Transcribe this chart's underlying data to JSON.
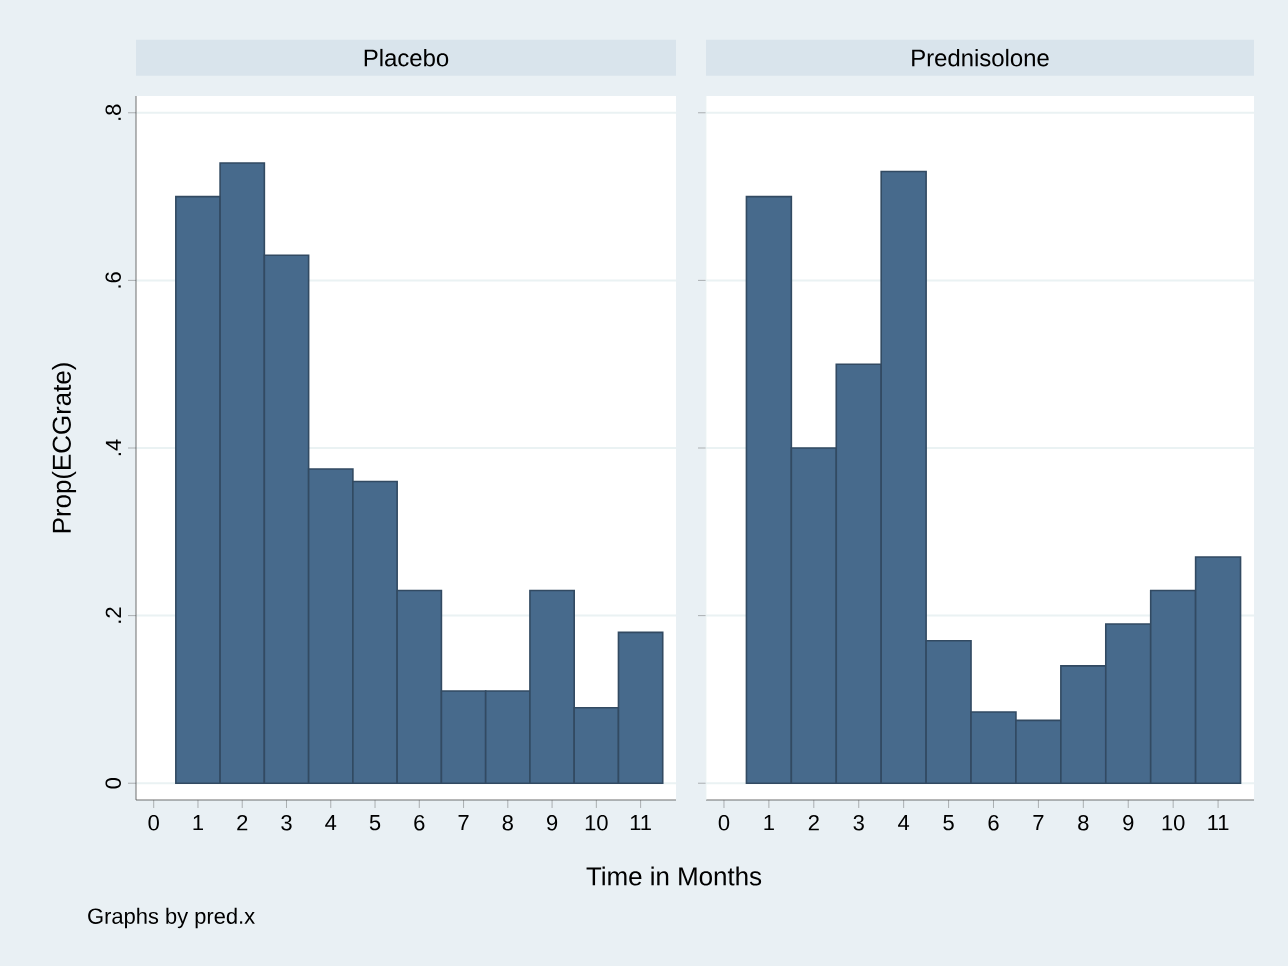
{
  "chart_data": [
    {
      "type": "histogram",
      "title": "Placebo",
      "ylabel": "Prop(ECGrate)",
      "xlabel": "Time in Months",
      "annotations": [
        "Graphs by pred.x"
      ],
      "bins": [
        0.5,
        1.5,
        2.5,
        3.5,
        4.5,
        5.5,
        6.5,
        7.5,
        8.5,
        9.5,
        10.5,
        11.5
      ],
      "values": [
        0.7,
        0.74,
        0.63,
        0.375,
        0.36,
        0.23,
        0.11,
        0.11,
        0.23,
        0.09,
        0.18
      ],
      "color": "#476a8c",
      "xlim": [
        -0.4,
        11.8
      ],
      "ylim": [
        -0.02,
        0.82
      ],
      "xticks": [
        0,
        1,
        2,
        3,
        4,
        5,
        6,
        7,
        8,
        9,
        10,
        11
      ],
      "yticks": [
        0,
        {
          "value": 0.2,
          "label": ".2"
        },
        {
          "value": 0.4,
          "label": ".4"
        },
        {
          "value": 0.6,
          "label": ".6"
        },
        {
          "value": 0.8,
          "label": ".8"
        }
      ],
      "grid": "y"
    },
    {
      "type": "histogram",
      "title": "Prednisolone",
      "bins": [
        0.5,
        1.5,
        2.5,
        3.5,
        4.5,
        5.5,
        6.5,
        7.5,
        8.5,
        9.5,
        10.5,
        11.5
      ],
      "values": [
        0.7,
        0.4,
        0.5,
        0.73,
        0.17,
        0.085,
        0.075,
        0.14,
        0.19,
        0.23,
        0.27
      ],
      "color": "#476a8c",
      "xlim": [
        -0.4,
        11.8
      ],
      "ylim": [
        -0.02,
        0.82
      ],
      "xticks": [
        0,
        1,
        2,
        3,
        4,
        5,
        6,
        7,
        8,
        9,
        10,
        11
      ],
      "yticks": [
        {
          "value": 0,
          "label": null
        },
        {
          "value": 0.2,
          "label": null
        },
        {
          "value": 0.4,
          "label": null
        },
        {
          "value": 0.6,
          "label": null
        },
        {
          "value": 0.8,
          "label": null
        }
      ],
      "grid": "y",
      "tick_labels": "x"
    }
  ]
}
